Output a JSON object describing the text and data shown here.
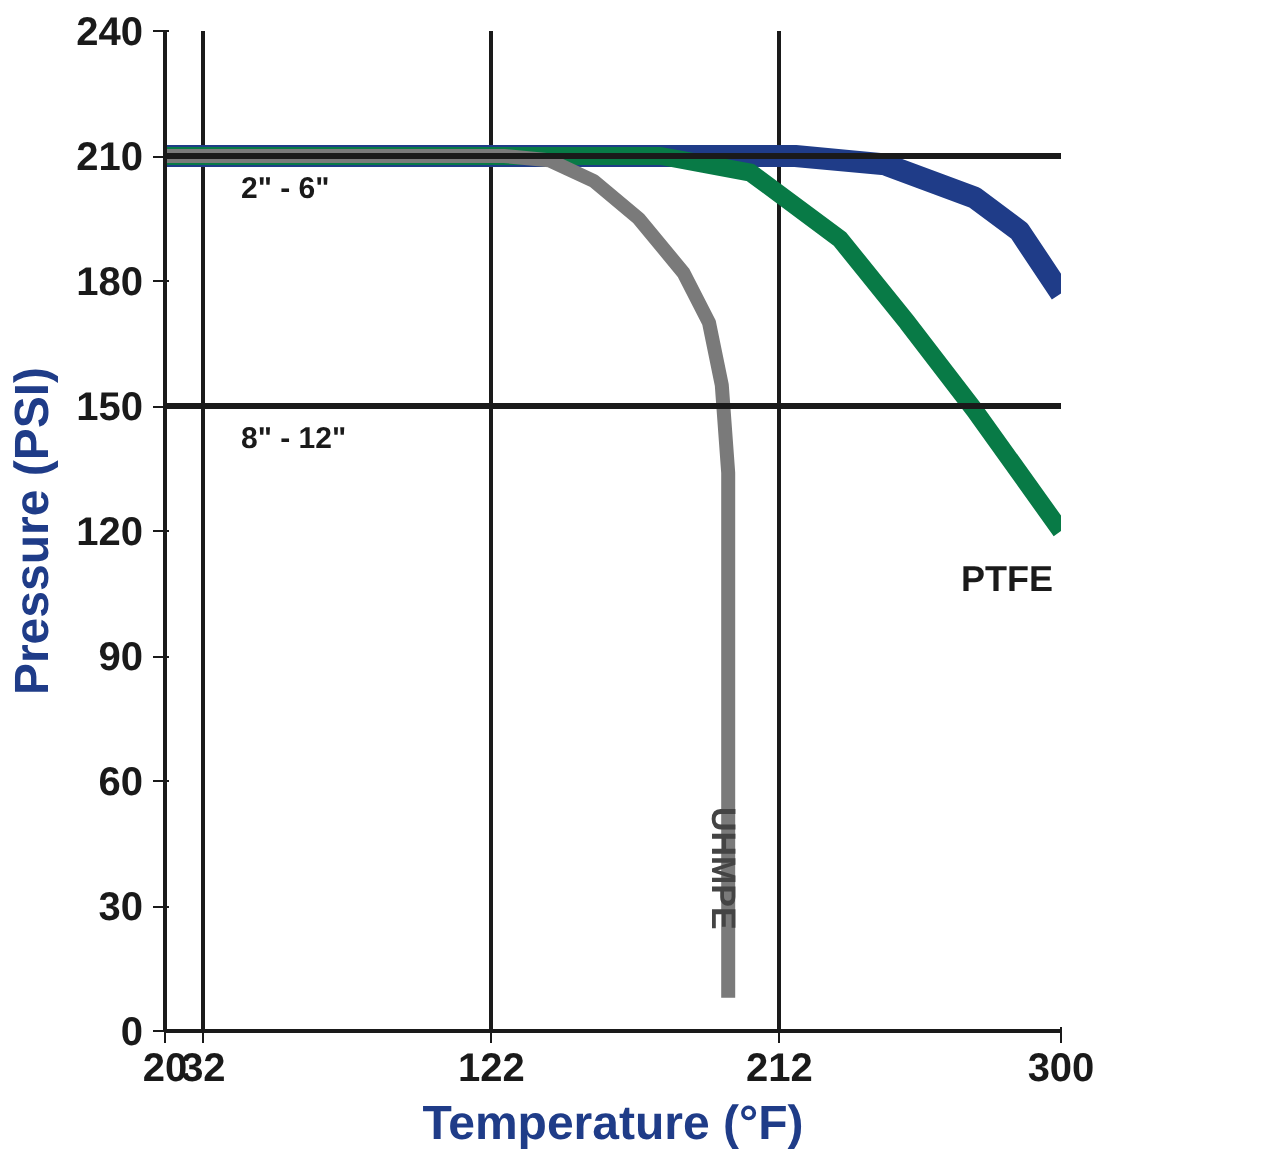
{
  "chart_data": {
    "type": "line",
    "xlabel": "Temperature (°F)",
    "ylabel": "Pressure (PSI)",
    "xlim": [
      20,
      300
    ],
    "xticks": [
      20,
      32,
      122,
      212,
      300
    ],
    "ylim": [
      0,
      240
    ],
    "yticks": [
      0,
      30,
      60,
      90,
      120,
      150,
      180,
      210,
      240
    ],
    "grid": "x",
    "legend": false,
    "marker": "none",
    "line_style": "solid",
    "ref_lines": [
      {
        "axis": "y",
        "value": 210,
        "color": "#1a1a1a"
      },
      {
        "axis": "y",
        "value": 150,
        "color": "#1a1a1a"
      }
    ],
    "annotations": [
      "2\" - 6\"",
      "8\" - 12\""
    ],
    "series": [
      {
        "color": "#1f3c88",
        "x": [
          20,
          217,
          245,
          273,
          287,
          300
        ],
        "values": [
          210,
          210,
          208,
          200,
          192,
          177
        ]
      },
      {
        "name": "PTFE",
        "color": "#087a46",
        "x": [
          20,
          175,
          203,
          231,
          252,
          273,
          300
        ],
        "values": [
          210,
          210,
          206,
          190,
          170,
          149,
          120
        ]
      },
      {
        "name": "UHMPE",
        "color": "#7a7a7a",
        "x": [
          20,
          126,
          140,
          154,
          168,
          182,
          190,
          194,
          196,
          196
        ],
        "values": [
          210,
          210,
          209,
          204,
          195,
          182,
          170,
          155,
          134,
          8
        ]
      }
    ]
  }
}
